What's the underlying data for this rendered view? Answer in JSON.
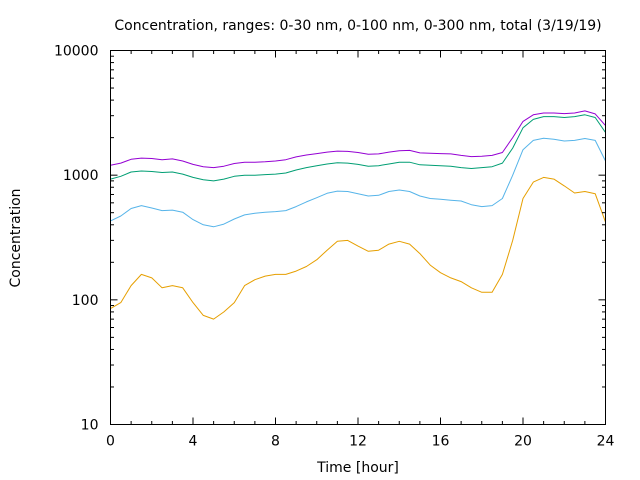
{
  "chart_data": {
    "type": "line",
    "title": "Concentration, ranges: 0-30 nm, 0-100 nm, 0-300 nm, total (3/19/19)",
    "xlabel": "Time [hour]",
    "ylabel": "Concentration",
    "xlim": [
      0,
      24
    ],
    "ylim": [
      10,
      10000
    ],
    "yscale": "log",
    "grid": false,
    "legend": "none",
    "xticks": [
      0,
      4,
      8,
      12,
      16,
      20,
      24
    ],
    "xtick_labels": [
      "0",
      "4",
      "8",
      "12",
      "16",
      "20",
      "24"
    ],
    "yticks": [
      10,
      100,
      1000,
      10000
    ],
    "ytick_labels": [
      "10",
      "100",
      "1000",
      "10000"
    ],
    "x": [
      0,
      0.5,
      1,
      1.5,
      2,
      2.5,
      3,
      3.5,
      4,
      4.5,
      5,
      5.5,
      6,
      6.5,
      7,
      7.5,
      8,
      8.5,
      9,
      9.5,
      10,
      10.5,
      11,
      11.5,
      12,
      12.5,
      13,
      13.5,
      14,
      14.5,
      15,
      15.5,
      16,
      16.5,
      17,
      17.5,
      18,
      18.5,
      19,
      19.5,
      20,
      20.5,
      21,
      21.5,
      22,
      22.5,
      23,
      23.5,
      24
    ],
    "series": [
      {
        "color": "#e69f00",
        "values": [
          85,
          95,
          130,
          160,
          150,
          125,
          130,
          125,
          95,
          75,
          70,
          80,
          95,
          130,
          145,
          155,
          160,
          160,
          170,
          185,
          210,
          250,
          295,
          300,
          270,
          245,
          250,
          280,
          295,
          280,
          235,
          190,
          165,
          150,
          140,
          125,
          115,
          115,
          160,
          300,
          650,
          880,
          960,
          930,
          820,
          720,
          740,
          710,
          420
        ]
      },
      {
        "color": "#56b4e9",
        "values": [
          430,
          470,
          540,
          570,
          545,
          520,
          525,
          505,
          440,
          400,
          385,
          405,
          445,
          480,
          495,
          505,
          510,
          520,
          560,
          610,
          660,
          715,
          745,
          740,
          710,
          680,
          690,
          740,
          760,
          740,
          680,
          650,
          640,
          630,
          620,
          580,
          560,
          570,
          650,
          1000,
          1600,
          1900,
          1980,
          1940,
          1880,
          1900,
          1970,
          1900,
          1300
        ]
      },
      {
        "color": "#009e73",
        "values": [
          930,
          980,
          1060,
          1080,
          1070,
          1050,
          1060,
          1020,
          960,
          920,
          900,
          930,
          980,
          1000,
          1000,
          1010,
          1020,
          1040,
          1100,
          1150,
          1190,
          1230,
          1260,
          1250,
          1220,
          1180,
          1190,
          1230,
          1270,
          1270,
          1210,
          1200,
          1190,
          1180,
          1150,
          1130,
          1150,
          1170,
          1250,
          1650,
          2400,
          2800,
          2950,
          2950,
          2900,
          2950,
          3050,
          2900,
          2200
        ]
      },
      {
        "color": "#9400d3",
        "values": [
          1200,
          1250,
          1340,
          1370,
          1360,
          1330,
          1350,
          1300,
          1220,
          1170,
          1150,
          1180,
          1240,
          1270,
          1270,
          1280,
          1300,
          1330,
          1400,
          1450,
          1490,
          1530,
          1560,
          1550,
          1520,
          1470,
          1480,
          1530,
          1570,
          1580,
          1510,
          1500,
          1490,
          1480,
          1440,
          1410,
          1420,
          1440,
          1520,
          2000,
          2700,
          3050,
          3150,
          3150,
          3120,
          3150,
          3280,
          3100,
          2500
        ]
      }
    ]
  }
}
